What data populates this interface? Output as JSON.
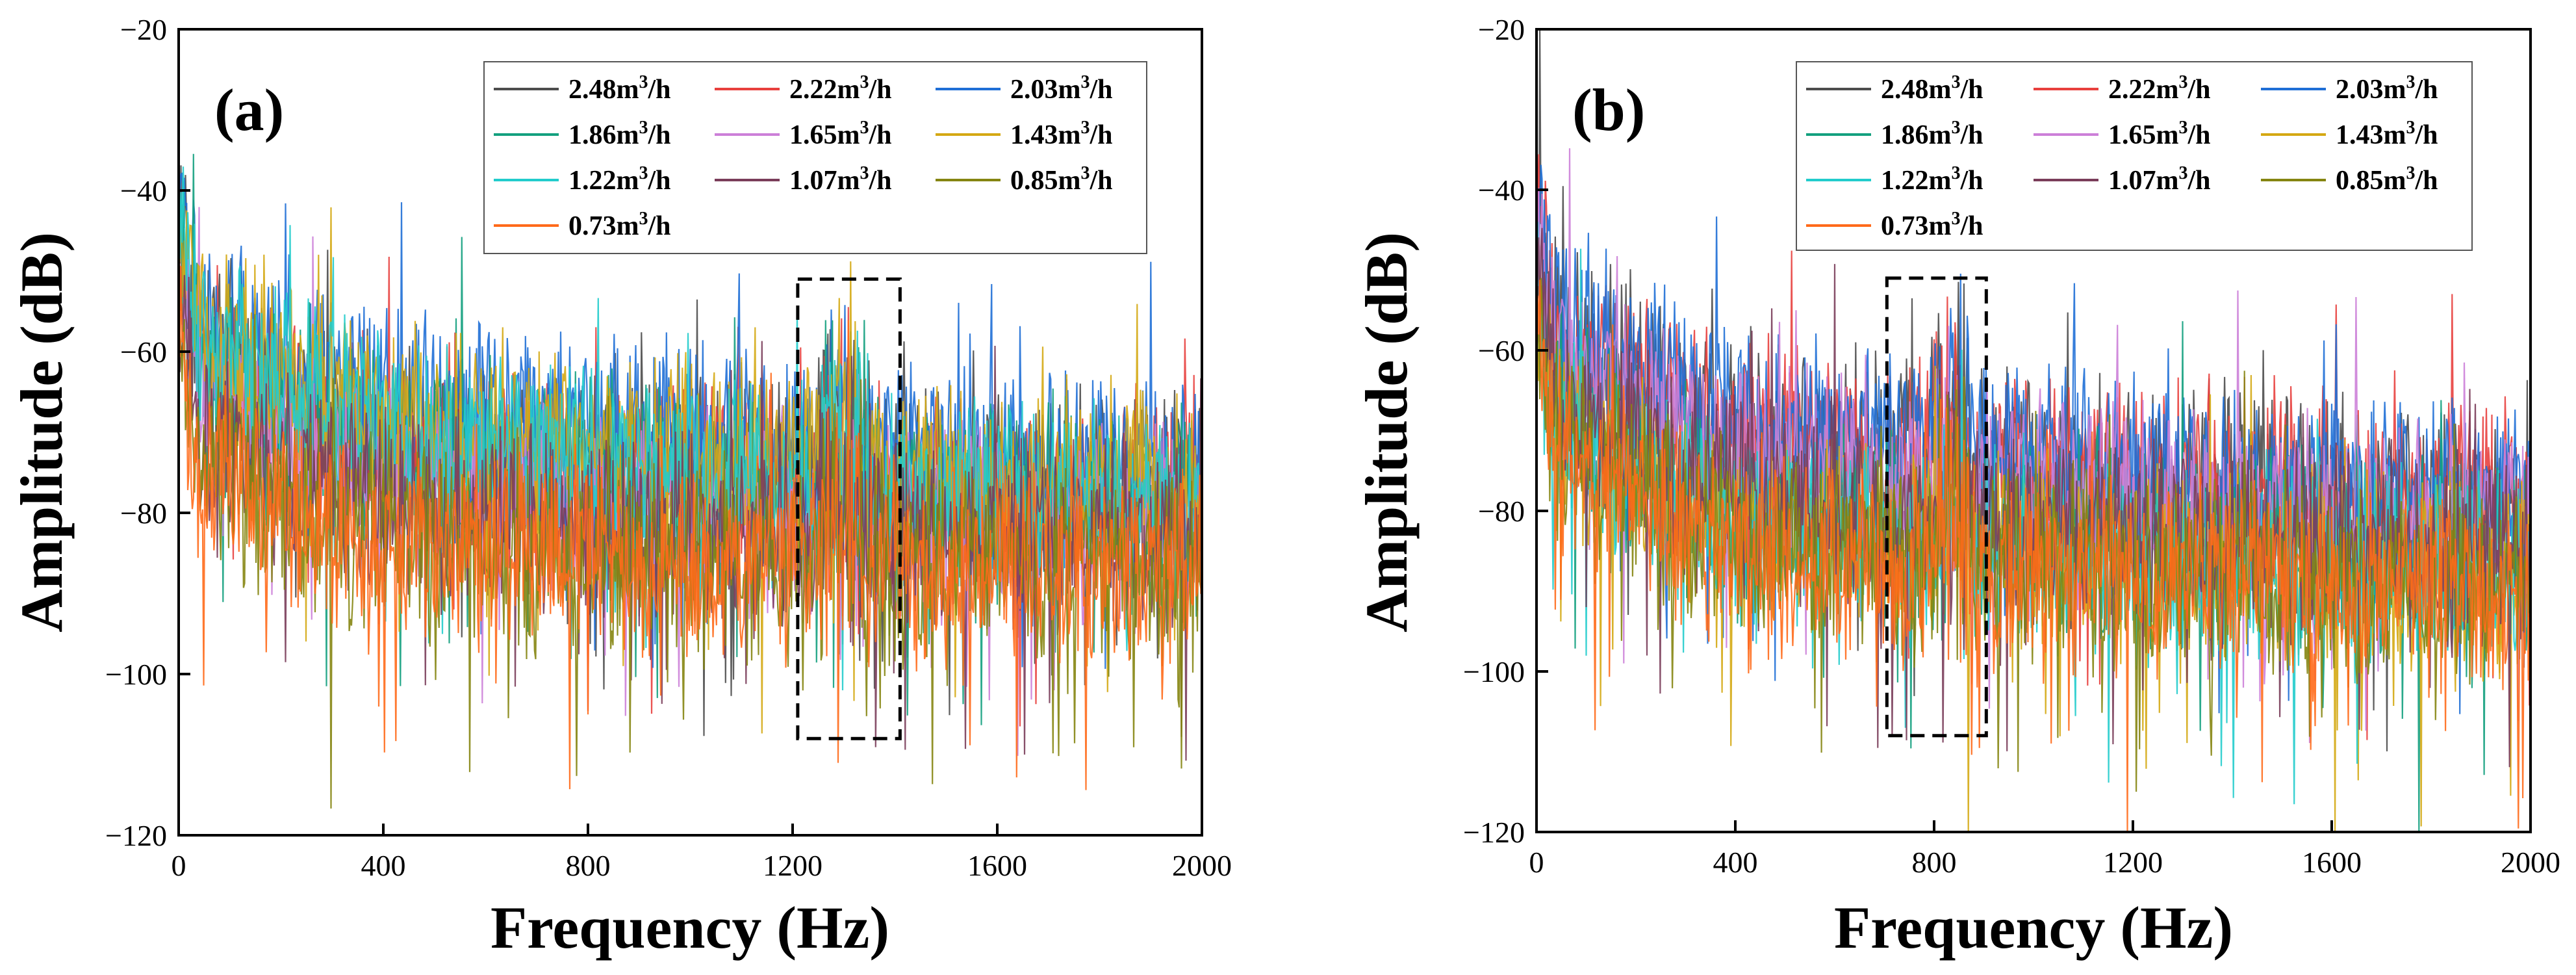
{
  "colors": {
    "2.48m3/h": "#4d4d4d",
    "2.22m3/h": "#e8403e",
    "2.03m3/h": "#1f6fd6",
    "1.86m3/h": "#13a07e",
    "1.65m3/h": "#cc7fd8",
    "1.43m3/h": "#d4a813",
    "1.22m3/h": "#22cccc",
    "1.07m3/h": "#7a3d5a",
    "0.85m3/h": "#858511",
    "0.73m3/h": "#ff6a1a"
  },
  "chart_data": [
    {
      "type": "line",
      "panel_label": "(a)",
      "xlabel": "Frequency (Hz)",
      "ylabel": "Amplitude (dB)",
      "xlim": [
        0,
        2000
      ],
      "ylim": [
        -120,
        -20
      ],
      "xticks": [
        "0",
        "400",
        "800",
        "1200",
        "1600",
        "2000"
      ],
      "yticks": [
        "-20",
        "-40",
        "-60",
        "-80",
        "-100",
        "-120"
      ],
      "highlight_box": {
        "x": [
          1210,
          1410
        ],
        "y": [
          -108,
          -51
        ]
      },
      "peak_note": "tonal peak cluster near 1250-1330 Hz reaching about -54 dB",
      "legend": [
        {
          "pre": "2.48m",
          "post": "/h",
          "key": "2.48m3/h"
        },
        {
          "pre": "2.22m",
          "post": "/h",
          "key": "2.22m3/h"
        },
        {
          "pre": "2.03m",
          "post": "/h",
          "key": "2.03m3/h"
        },
        {
          "pre": "1.86m",
          "post": "/h",
          "key": "1.86m3/h"
        },
        {
          "pre": "1.65m",
          "post": "/h",
          "key": "1.65m3/h"
        },
        {
          "pre": "1.43m",
          "post": "/h",
          "key": "1.43m3/h"
        },
        {
          "pre": "1.22m",
          "post": "/h",
          "key": "1.22m3/h"
        },
        {
          "pre": "1.07m",
          "post": "/h",
          "key": "1.07m3/h"
        },
        {
          "pre": "0.85m",
          "post": "/h",
          "key": "0.85m3/h"
        },
        {
          "pre": "0.73m",
          "post": "/h",
          "key": "0.73m3/h"
        }
      ],
      "series": [
        {
          "name": "2.48m3/h",
          "mean_dB_at_x": [
            [
              0,
              -58
            ],
            [
              400,
              -72
            ],
            [
              1200,
              -76
            ],
            [
              2000,
              -76
            ]
          ]
        },
        {
          "name": "2.22m3/h",
          "mean_dB_at_x": [
            [
              0,
              -60
            ],
            [
              400,
              -73
            ],
            [
              1200,
              -77
            ],
            [
              2000,
              -77
            ]
          ]
        },
        {
          "name": "2.03m3/h",
          "mean_dB_at_x": [
            [
              0,
              -55
            ],
            [
              400,
              -66
            ],
            [
              1200,
              -72
            ],
            [
              2000,
              -75
            ]
          ]
        },
        {
          "name": "1.86m3/h",
          "mean_dB_at_x": [
            [
              0,
              -60
            ],
            [
              400,
              -72
            ],
            [
              1200,
              -78
            ],
            [
              2000,
              -79
            ]
          ]
        },
        {
          "name": "1.65m3/h",
          "mean_dB_at_x": [
            [
              0,
              -64
            ],
            [
              400,
              -76
            ],
            [
              1200,
              -80
            ],
            [
              2000,
              -81
            ]
          ]
        },
        {
          "name": "1.43m3/h",
          "mean_dB_at_x": [
            [
              0,
              -58
            ],
            [
              400,
              -68
            ],
            [
              1200,
              -74
            ],
            [
              2000,
              -77
            ]
          ]
        },
        {
          "name": "1.22m3/h",
          "mean_dB_at_x": [
            [
              0,
              -57
            ],
            [
              400,
              -70
            ],
            [
              1200,
              -77
            ],
            [
              2000,
              -80
            ]
          ]
        },
        {
          "name": "1.07m3/h",
          "mean_dB_at_x": [
            [
              0,
              -70
            ],
            [
              400,
              -80
            ],
            [
              1200,
              -82
            ],
            [
              2000,
              -83
            ]
          ]
        },
        {
          "name": "0.85m3/h",
          "mean_dB_at_x": [
            [
              0,
              -72
            ],
            [
              400,
              -84
            ],
            [
              1200,
              -86
            ],
            [
              2000,
              -87
            ]
          ]
        },
        {
          "name": "0.73m3/h",
          "mean_dB_at_x": [
            [
              0,
              -74
            ],
            [
              400,
              -85
            ],
            [
              1200,
              -86
            ],
            [
              2000,
              -87
            ]
          ]
        }
      ]
    },
    {
      "type": "line",
      "panel_label": "(b)",
      "xlabel": "Frequency (Hz)",
      "ylabel": "Amplitude (dB)",
      "xlim": [
        0,
        2000
      ],
      "ylim": [
        -120,
        -20
      ],
      "xticks": [
        "0",
        "400",
        "800",
        "1200",
        "1600",
        "2000"
      ],
      "yticks": [
        "-20",
        "-40",
        "-60",
        "-80",
        "-100",
        "-120"
      ],
      "highlight_box": {
        "x": [
          705,
          905
        ],
        "y": [
          -108,
          -51
        ]
      },
      "peak_note": "tonal peak cluster near 800-870 Hz reaching about -58 dB",
      "legend": [
        {
          "pre": "2.48m",
          "post": "/h",
          "key": "2.48m3/h"
        },
        {
          "pre": "2.22m",
          "post": "/h",
          "key": "2.22m3/h"
        },
        {
          "pre": "2.03m",
          "post": "/h",
          "key": "2.03m3/h"
        },
        {
          "pre": "1.86m",
          "post": "/h",
          "key": "1.86m3/h"
        },
        {
          "pre": "1.65m",
          "post": "/h",
          "key": "1.65m3/h"
        },
        {
          "pre": "1.43m",
          "post": "/h",
          "key": "1.43m3/h"
        },
        {
          "pre": "1.22m",
          "post": "/h",
          "key": "1.22m3/h"
        },
        {
          "pre": "1.07m",
          "post": "/h",
          "key": "1.07m3/h"
        },
        {
          "pre": "0.85m",
          "post": "/h",
          "key": "0.85m3/h"
        },
        {
          "pre": "0.73m",
          "post": "/h",
          "key": "0.73m3/h"
        }
      ],
      "series": [
        {
          "name": "2.48m3/h",
          "mean_dB_at_x": [
            [
              0,
              -56
            ],
            [
              400,
              -70
            ],
            [
              1200,
              -76
            ],
            [
              2000,
              -80
            ]
          ]
        },
        {
          "name": "2.22m3/h",
          "mean_dB_at_x": [
            [
              0,
              -58
            ],
            [
              400,
              -71
            ],
            [
              1200,
              -76
            ],
            [
              2000,
              -78
            ]
          ]
        },
        {
          "name": "2.03m3/h",
          "mean_dB_at_x": [
            [
              0,
              -55
            ],
            [
              400,
              -69
            ],
            [
              1200,
              -75
            ],
            [
              2000,
              -79
            ]
          ]
        },
        {
          "name": "1.86m3/h",
          "mean_dB_at_x": [
            [
              0,
              -66
            ],
            [
              400,
              -80
            ],
            [
              1200,
              -84
            ],
            [
              2000,
              -86
            ]
          ]
        },
        {
          "name": "1.65m3/h",
          "mean_dB_at_x": [
            [
              0,
              -60
            ],
            [
              400,
              -74
            ],
            [
              1200,
              -79
            ],
            [
              2000,
              -82
            ]
          ]
        },
        {
          "name": "1.43m3/h",
          "mean_dB_at_x": [
            [
              0,
              -68
            ],
            [
              400,
              -82
            ],
            [
              1200,
              -86
            ],
            [
              2000,
              -88
            ]
          ]
        },
        {
          "name": "1.22m3/h",
          "mean_dB_at_x": [
            [
              0,
              -68
            ],
            [
              400,
              -82
            ],
            [
              1200,
              -86
            ],
            [
              2000,
              -88
            ]
          ]
        },
        {
          "name": "1.07m3/h",
          "mean_dB_at_x": [
            [
              0,
              -64
            ],
            [
              400,
              -78
            ],
            [
              1200,
              -83
            ],
            [
              2000,
              -85
            ]
          ]
        },
        {
          "name": "0.85m3/h",
          "mean_dB_at_x": [
            [
              0,
              -70
            ],
            [
              400,
              -84
            ],
            [
              1200,
              -88
            ],
            [
              2000,
              -90
            ]
          ]
        },
        {
          "name": "0.73m3/h",
          "mean_dB_at_x": [
            [
              0,
              -72
            ],
            [
              400,
              -85
            ],
            [
              1200,
              -88
            ],
            [
              2000,
              -90
            ]
          ]
        }
      ]
    }
  ]
}
